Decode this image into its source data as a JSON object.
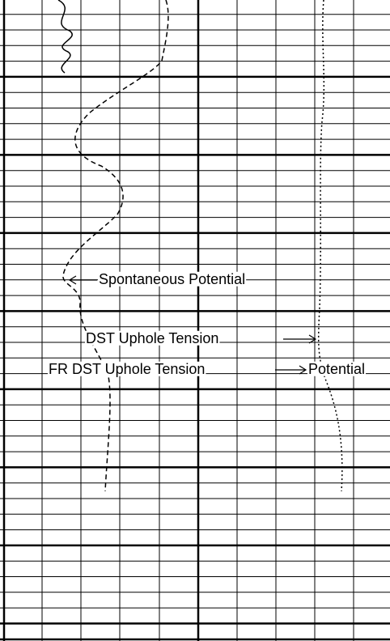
{
  "labels": [
    {
      "text": "Spontaneous Potential"
    },
    {
      "text": "DST Uphole Tension"
    },
    {
      "text": "FR DST Uphole Tension"
    },
    {
      "text": "Potential"
    }
  ]
}
